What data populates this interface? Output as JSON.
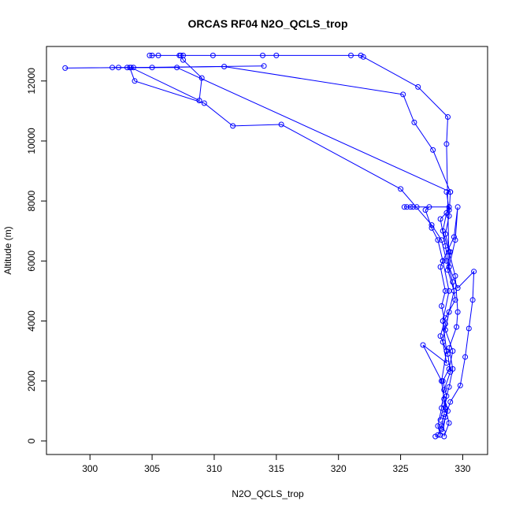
{
  "chart_data": {
    "type": "line",
    "title": "ORCAS RF04 N2O_QCLS_trop",
    "xlabel": "N2O_QCLS_trop",
    "ylabel": "Altitude (m)",
    "xlim": [
      296.5,
      332
    ],
    "ylim": [
      -450,
      13150
    ],
    "xticks": [
      300,
      305,
      310,
      315,
      320,
      325,
      330
    ],
    "yticks": [
      0,
      2000,
      4000,
      6000,
      8000,
      10000,
      12000
    ],
    "grid": false,
    "color": "#0000ff",
    "series": [
      {
        "values": [
          [
            327.8,
            150
          ],
          [
            328.0,
            200
          ],
          [
            328.3,
            500
          ],
          [
            328.5,
            900
          ],
          [
            328.7,
            1500
          ],
          [
            328.4,
            2000
          ],
          [
            328.9,
            2400
          ],
          [
            329.2,
            3000
          ],
          [
            328.6,
            3700
          ],
          [
            328.9,
            4300
          ],
          [
            329.3,
            5000
          ],
          [
            328.8,
            5700
          ],
          [
            329.0,
            6300
          ],
          [
            328.6,
            6900
          ],
          [
            328.9,
            7500
          ],
          [
            329.0,
            8300
          ],
          [
            307.0,
            12450
          ],
          [
            302.3,
            12450
          ],
          [
            298.0,
            12430
          ],
          [
            303.5,
            12450
          ],
          [
            314.0,
            12500
          ],
          [
            303.2,
            12450
          ],
          [
            303.6,
            12000
          ],
          [
            309.2,
            11260
          ],
          [
            311.5,
            10500
          ],
          [
            315.4,
            10550
          ],
          [
            325.0,
            8400
          ],
          [
            327.5,
            7200
          ],
          [
            328.3,
            6700
          ],
          [
            328.7,
            6000
          ],
          [
            329.2,
            5300
          ],
          [
            329.4,
            4700
          ],
          [
            328.6,
            4100
          ],
          [
            328.2,
            3500
          ],
          [
            328.8,
            2900
          ],
          [
            329.0,
            2300
          ],
          [
            328.5,
            1700
          ],
          [
            328.3,
            1100
          ],
          [
            328.0,
            500
          ],
          [
            328.2,
            200
          ]
        ]
      },
      {
        "values": [
          [
            328.4,
            300
          ],
          [
            328.6,
            800
          ],
          [
            329.0,
            1300
          ],
          [
            329.8,
            1850
          ],
          [
            330.2,
            2800
          ],
          [
            330.5,
            3750
          ],
          [
            330.8,
            4700
          ],
          [
            330.9,
            5650
          ],
          [
            329.6,
            5100
          ],
          [
            328.9,
            5800
          ],
          [
            329.4,
            6700
          ],
          [
            329.6,
            7800
          ],
          [
            329.3,
            6800
          ],
          [
            328.4,
            6000
          ],
          [
            328.9,
            5000
          ],
          [
            328.4,
            4000
          ],
          [
            328.7,
            3000
          ],
          [
            328.3,
            2000
          ],
          [
            328.6,
            1100
          ],
          [
            328.9,
            600
          ],
          [
            328.5,
            150
          ]
        ]
      },
      {
        "values": [
          [
            328.2,
            700
          ],
          [
            328.5,
            1200
          ],
          [
            328.9,
            1800
          ],
          [
            329.2,
            2400
          ],
          [
            328.9,
            3100
          ],
          [
            329.5,
            3800
          ],
          [
            329.6,
            4300
          ],
          [
            329.4,
            5500
          ],
          [
            328.9,
            6300
          ],
          [
            328.4,
            7000
          ],
          [
            328.7,
            7600
          ],
          [
            328.9,
            7800
          ],
          [
            326.0,
            7800
          ],
          [
            326.3,
            7800
          ],
          [
            325.8,
            7800
          ],
          [
            325.5,
            7800
          ],
          [
            325.3,
            7800
          ],
          [
            327.3,
            7800
          ],
          [
            327.0,
            7700
          ],
          [
            327.5,
            7100
          ],
          [
            328.0,
            6700
          ],
          [
            328.4,
            6000
          ],
          [
            328.2,
            5800
          ],
          [
            328.6,
            5000
          ],
          [
            328.3,
            4500
          ],
          [
            328.6,
            3900
          ],
          [
            328.4,
            3300
          ],
          [
            328.7,
            2600
          ],
          [
            326.8,
            3200
          ],
          [
            328.3,
            2000
          ],
          [
            328.5,
            1400
          ],
          [
            328.8,
            1000
          ],
          [
            328.3,
            400
          ]
        ]
      },
      {
        "values": [
          [
            328.7,
            8300
          ],
          [
            328.9,
            7700
          ],
          [
            328.2,
            7400
          ],
          [
            328.6,
            6500
          ],
          [
            328.9,
            5800
          ],
          [
            328.7,
            9900
          ],
          [
            328.8,
            10800
          ],
          [
            326.4,
            11800
          ],
          [
            322.0,
            12800
          ],
          [
            321.8,
            12850
          ],
          [
            321.0,
            12850
          ],
          [
            315.0,
            12850
          ],
          [
            313.9,
            12850
          ],
          [
            309.9,
            12850
          ],
          [
            307.5,
            12850
          ],
          [
            307.2,
            12850
          ],
          [
            305.5,
            12850
          ],
          [
            305.0,
            12850
          ],
          [
            304.8,
            12850
          ],
          [
            307.3,
            12850
          ],
          [
            307.5,
            12700
          ],
          [
            309.0,
            12100
          ],
          [
            308.8,
            11350
          ],
          [
            303.3,
            12450
          ],
          [
            303.0,
            12450
          ],
          [
            301.8,
            12450
          ],
          [
            305.0,
            12450
          ],
          [
            310.8,
            12480
          ],
          [
            325.2,
            11550
          ],
          [
            326.1,
            10620
          ],
          [
            327.6,
            9700
          ],
          [
            329.0,
            8300
          ]
        ]
      }
    ]
  }
}
